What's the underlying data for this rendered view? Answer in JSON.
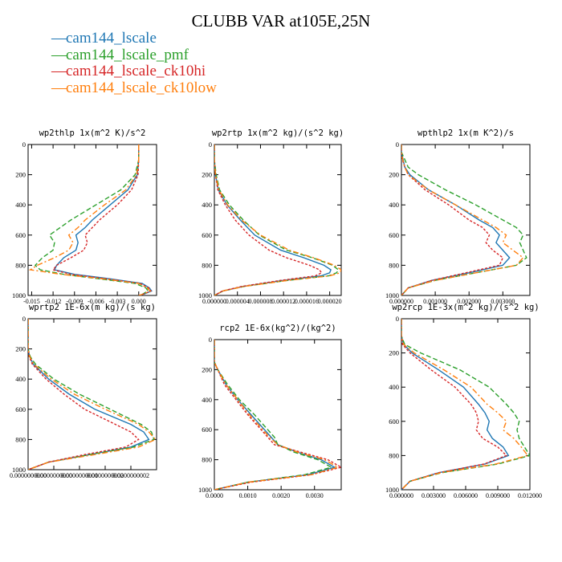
{
  "title": "CLUBB VAR at105E,25N",
  "legend": [
    {
      "label": "cam144_lscale",
      "color": "#1f77b4"
    },
    {
      "label": "cam144_lscale_pmf",
      "color": "#2ca02c"
    },
    {
      "label": "cam144_lscale_ck10hi",
      "color": "#d62728"
    },
    {
      "label": "cam144_lscale_ck10low",
      "color": "#ff7f0e"
    }
  ],
  "chart_data": [
    {
      "type": "line",
      "title": "wp2thlp  1x(m^2 K)/s^2",
      "ylim": [
        1000,
        0
      ],
      "y_ticks": [
        0,
        200,
        400,
        600,
        800,
        1000
      ],
      "y_tick_labels": [
        "0",
        "200",
        "400",
        "600",
        "800",
        "1000"
      ],
      "xlim": [
        -0.0155,
        0.0025
      ],
      "x_ticks": [
        -0.015,
        -0.012,
        -0.009,
        -0.006,
        -0.003,
        0.0
      ],
      "x_tick_labels": [
        "-0.015",
        "-0.012",
        "-0.009",
        "-0.006",
        "-0.003",
        "0.000"
      ],
      "y": [
        0,
        100,
        200,
        300,
        400,
        500,
        550,
        600,
        650,
        700,
        750,
        800,
        830,
        860,
        890,
        920,
        950,
        970,
        990,
        1000
      ],
      "series": [
        {
          "name": "cam144_lscale",
          "values": [
            0.0,
            0.0,
            -0.0002,
            -0.0015,
            -0.004,
            -0.0065,
            -0.0075,
            -0.0088,
            -0.0085,
            -0.0088,
            -0.0105,
            -0.0115,
            -0.0118,
            -0.009,
            -0.004,
            0.0005,
            0.0015,
            0.0018,
            0.0008,
            0.0
          ]
        },
        {
          "name": "cam144_lscale_pmf",
          "values": [
            0.0,
            0.0,
            -0.0005,
            -0.0025,
            -0.006,
            -0.0095,
            -0.011,
            -0.0125,
            -0.0118,
            -0.012,
            -0.0135,
            -0.0145,
            -0.0138,
            -0.0105,
            -0.0055,
            -0.0005,
            0.001,
            0.0013,
            0.0006,
            0.0
          ]
        },
        {
          "name": "cam144_lscale_ck10hi",
          "values": [
            0.0,
            0.0,
            -0.0001,
            -0.001,
            -0.003,
            -0.0055,
            -0.0065,
            -0.0075,
            -0.0072,
            -0.0077,
            -0.0095,
            -0.0115,
            -0.012,
            -0.0095,
            -0.0045,
            0.0002,
            0.0014,
            0.0017,
            0.0007,
            0.0
          ]
        },
        {
          "name": "cam144_lscale_ck10low",
          "values": [
            0.0,
            0.0,
            -0.0003,
            -0.0018,
            -0.0048,
            -0.0075,
            -0.0085,
            -0.0098,
            -0.0092,
            -0.0098,
            -0.0118,
            -0.0142,
            -0.0152,
            -0.0108,
            -0.005,
            0.0,
            0.0012,
            0.0016,
            0.0007,
            0.0
          ]
        }
      ]
    },
    {
      "type": "line",
      "title": "wp2rtp  1x(m^2 kg)/(s^2 kg)",
      "ylim": [
        1000,
        0
      ],
      "y_ticks": [
        0,
        200,
        400,
        600,
        800,
        1000
      ],
      "y_tick_labels": [
        "0",
        "200",
        "400",
        "600",
        "800",
        "1000"
      ],
      "xlim": [
        0,
        2.2e-05
      ],
      "x_ticks": [
        0,
        4e-06,
        8e-06,
        1.2e-05,
        1.6e-05,
        2e-05
      ],
      "x_tick_labels": [
        "0.000000",
        "0.000004",
        "0.000008",
        "0.000012",
        "0.000016",
        "0.000020"
      ],
      "y": [
        0,
        100,
        200,
        300,
        400,
        500,
        600,
        700,
        750,
        800,
        830,
        850,
        870,
        900,
        940,
        970,
        1000
      ],
      "series": [
        {
          "name": "cam144_lscale",
          "values": [
            0.0,
            0.0,
            2e-07,
            7e-07,
            2.2e-06,
            4.5e-06,
            7e-06,
            1.15e-05,
            1.55e-05,
            1.9e-05,
            2.02e-05,
            2e-05,
            1.85e-05,
            1.2e-05,
            5e-06,
            1.5e-06,
            0.0
          ]
        },
        {
          "name": "cam144_lscale_pmf",
          "values": [
            0.0,
            0.0,
            3e-07,
            9e-07,
            2.6e-06,
            5e-06,
            7.8e-06,
            1.25e-05,
            1.7e-05,
            2.05e-05,
            2.15e-05,
            2.12e-05,
            1.98e-05,
            1.28e-05,
            5.2e-06,
            1.5e-06,
            0.0
          ]
        },
        {
          "name": "cam144_lscale_ck10hi",
          "values": [
            0.0,
            0.0,
            2e-07,
            6e-07,
            1.9e-06,
            3.6e-06,
            6e-06,
            9.5e-06,
            1.25e-05,
            1.65e-05,
            1.82e-05,
            1.86e-05,
            1.75e-05,
            1.15e-05,
            4.8e-06,
            1.4e-06,
            0.0
          ]
        },
        {
          "name": "cam144_lscale_ck10low",
          "values": [
            0.0,
            0.0,
            2e-07,
            8e-07,
            2.3e-06,
            4.7e-06,
            8e-06,
            1.3e-05,
            1.72e-05,
            2.08e-05,
            2.2e-05,
            2.18e-05,
            2e-05,
            1.28e-05,
            5.2e-06,
            1.5e-06,
            0.0
          ]
        }
      ]
    },
    {
      "type": "line",
      "title": "wpthlp2  1x(m K^2)/s",
      "ylim": [
        1000,
        0
      ],
      "y_ticks": [
        0,
        200,
        400,
        600,
        800,
        1000
      ],
      "y_tick_labels": [
        "0",
        "200",
        "400",
        "600",
        "800",
        "1000"
      ],
      "xlim": [
        0,
        0.0038
      ],
      "x_ticks": [
        0,
        0.001,
        0.002,
        0.003
      ],
      "x_tick_labels": [
        "0.000000",
        "0.001000",
        "0.002000",
        "0.003000"
      ],
      "y": [
        0,
        50,
        100,
        150,
        200,
        300,
        400,
        500,
        550,
        600,
        650,
        700,
        750,
        800,
        850,
        900,
        950,
        1000
      ],
      "series": [
        {
          "name": "cam144_lscale",
          "values": [
            0.0,
            0.0,
            5e-05,
            0.0001,
            0.00025,
            0.0008,
            0.0016,
            0.0023,
            0.0027,
            0.0029,
            0.0028,
            0.003,
            0.0032,
            0.003,
            0.002,
            0.0009,
            0.0002,
            0.0
          ]
        },
        {
          "name": "cam144_lscale_pmf",
          "values": [
            0.0,
            0.0,
            0.0001,
            0.0002,
            0.0005,
            0.0013,
            0.0022,
            0.003,
            0.0034,
            0.0036,
            0.0035,
            0.0036,
            0.0037,
            0.0034,
            0.0022,
            0.001,
            0.0002,
            0.0
          ]
        },
        {
          "name": "cam144_lscale_ck10hi",
          "values": [
            0.0,
            0.0,
            3e-05,
            0.0001,
            0.0002,
            0.0007,
            0.0014,
            0.002,
            0.0024,
            0.0026,
            0.0025,
            0.0027,
            0.003,
            0.0029,
            0.0019,
            0.0009,
            0.0002,
            0.0
          ]
        },
        {
          "name": "cam144_lscale_ck10low",
          "values": [
            0.0,
            0.0,
            4e-05,
            0.0001,
            0.0002,
            0.0008,
            0.0016,
            0.0024,
            0.0028,
            0.0031,
            0.003,
            0.0033,
            0.0036,
            0.0034,
            0.0022,
            0.001,
            0.0002,
            0.0
          ]
        }
      ]
    },
    {
      "type": "line",
      "title": "wprtp2  1E-6x(m kg)/(s kg)",
      "ylim": [
        1000,
        0
      ],
      "y_ticks": [
        0,
        200,
        400,
        600,
        800,
        1000
      ],
      "y_tick_labels": [
        "0",
        "200",
        "400",
        "600",
        "800",
        "1000"
      ],
      "xlim": [
        0,
        2.5e-10
      ],
      "x_ticks": [
        0,
        5e-11,
        1e-10,
        1.5e-10,
        2e-10
      ],
      "x_tick_labels": [
        "0.0000000000",
        "0.0000000000",
        "0.0000000001",
        "0.0000000002",
        "0.0000000002"
      ],
      "y": [
        0,
        100,
        200,
        250,
        300,
        400,
        500,
        600,
        700,
        750,
        800,
        850,
        900,
        950,
        1000
      ],
      "series": [
        {
          "name": "cam144_lscale",
          "values": [
            0.0,
            0.0,
            0.0,
            3e-12,
            1e-11,
            4e-11,
            8e-11,
            1.3e-10,
            2e-10,
            2.25e-10,
            2.35e-10,
            2e-10,
            1.2e-10,
            4e-11,
            0.0
          ]
        },
        {
          "name": "cam144_lscale_pmf",
          "values": [
            0.0,
            0.0,
            0.0,
            4e-12,
            1.4e-11,
            5e-11,
            1e-10,
            1.6e-10,
            2.2e-10,
            2.4e-10,
            2.45e-10,
            2.05e-10,
            1.2e-10,
            4e-11,
            0.0
          ]
        },
        {
          "name": "cam144_lscale_ck10hi",
          "values": [
            0.0,
            0.0,
            0.0,
            2e-12,
            8e-12,
            3.5e-11,
            7e-11,
            1.1e-10,
            1.7e-10,
            2e-10,
            2.15e-10,
            1.9e-10,
            1.1e-10,
            4e-11,
            0.0
          ]
        },
        {
          "name": "cam144_lscale_ck10low",
          "values": [
            0.0,
            0.0,
            0.0,
            3e-12,
            1.1e-11,
            4.5e-11,
            9e-11,
            1.5e-10,
            2.15e-10,
            2.35e-10,
            2.48e-10,
            2.15e-10,
            1.3e-10,
            4e-11,
            0.0
          ]
        }
      ]
    },
    {
      "type": "line",
      "title": "rcp2  1E-6x(kg^2)/(kg^2)",
      "ylim": [
        1000,
        0
      ],
      "y_ticks": [
        0,
        200,
        400,
        600,
        800,
        1000
      ],
      "y_tick_labels": [
        "0",
        "200",
        "400",
        "600",
        "800",
        "1000"
      ],
      "xlim": [
        0,
        0.0038
      ],
      "x_ticks": [
        0,
        0.001,
        0.002,
        0.003
      ],
      "x_tick_labels": [
        "0.0000",
        "0.0010",
        "0.0020",
        "0.0030"
      ],
      "y": [
        0,
        100,
        150,
        200,
        300,
        400,
        500,
        600,
        650,
        700,
        750,
        800,
        850,
        900,
        950,
        1000
      ],
      "series": [
        {
          "name": "cam144_lscale",
          "values": [
            0.0,
            0.0,
            0.0,
            0.0001,
            0.00035,
            0.0007,
            0.0011,
            0.0015,
            0.0017,
            0.0019,
            0.0025,
            0.0032,
            0.0036,
            0.0028,
            0.001,
            0.0
          ]
        },
        {
          "name": "cam144_lscale_pmf",
          "values": [
            0.0,
            0.0,
            0.0,
            0.0001,
            0.0004,
            0.00075,
            0.0012,
            0.0016,
            0.0018,
            0.0019,
            0.0024,
            0.0031,
            0.0035,
            0.0027,
            0.001,
            0.0
          ]
        },
        {
          "name": "cam144_lscale_ck10hi",
          "values": [
            0.0,
            0.0,
            0.0,
            0.0001,
            0.0003,
            0.00065,
            0.001,
            0.0014,
            0.0016,
            0.0018,
            0.0026,
            0.0034,
            0.0038,
            0.0029,
            0.0011,
            0.0
          ]
        },
        {
          "name": "cam144_lscale_ck10low",
          "values": [
            0.0,
            0.0,
            0.0,
            0.0001,
            0.00035,
            0.0007,
            0.00105,
            0.00145,
            0.00165,
            0.0019,
            0.0025,
            0.0033,
            0.0037,
            0.0029,
            0.001,
            0.0
          ]
        }
      ]
    },
    {
      "type": "line",
      "title": "wp2rcp  1E-3x(m^2 kg)/(s^2 kg)",
      "ylim": [
        1000,
        0
      ],
      "y_ticks": [
        0,
        200,
        400,
        600,
        800,
        1000
      ],
      "y_tick_labels": [
        "0",
        "200",
        "400",
        "600",
        "800",
        "1000"
      ],
      "xlim": [
        0,
        0.012
      ],
      "x_ticks": [
        0,
        0.003,
        0.006,
        0.009,
        0.012
      ],
      "x_tick_labels": [
        "0.000000",
        "0.003000",
        "0.006000",
        "0.009000",
        "0.012000"
      ],
      "y": [
        0,
        100,
        150,
        200,
        300,
        400,
        500,
        550,
        600,
        650,
        700,
        750,
        800,
        850,
        900,
        950,
        1000
      ],
      "series": [
        {
          "name": "cam144_lscale",
          "values": [
            0.0,
            0.0,
            0.0002,
            0.001,
            0.0035,
            0.0058,
            0.0072,
            0.0078,
            0.0082,
            0.008,
            0.0085,
            0.0095,
            0.01,
            0.0078,
            0.0035,
            0.0008,
            0.0
          ]
        },
        {
          "name": "cam144_lscale_pmf",
          "values": [
            0.0,
            0.0,
            0.0003,
            0.0018,
            0.0055,
            0.0082,
            0.0098,
            0.0105,
            0.011,
            0.0108,
            0.011,
            0.0115,
            0.012,
            0.009,
            0.0038,
            0.0008,
            0.0
          ]
        },
        {
          "name": "cam144_lscale_ck10hi",
          "values": [
            0.0,
            0.0,
            0.0001,
            0.0008,
            0.0028,
            0.005,
            0.0065,
            0.007,
            0.0072,
            0.007,
            0.0076,
            0.009,
            0.0098,
            0.0077,
            0.0035,
            0.0008,
            0.0
          ]
        },
        {
          "name": "cam144_lscale_ck10low",
          "values": [
            0.0,
            0.0,
            0.0002,
            0.0012,
            0.004,
            0.0065,
            0.008,
            0.009,
            0.0098,
            0.0095,
            0.0105,
            0.0112,
            0.0118,
            0.0088,
            0.0037,
            0.0008,
            0.0
          ]
        }
      ]
    }
  ]
}
